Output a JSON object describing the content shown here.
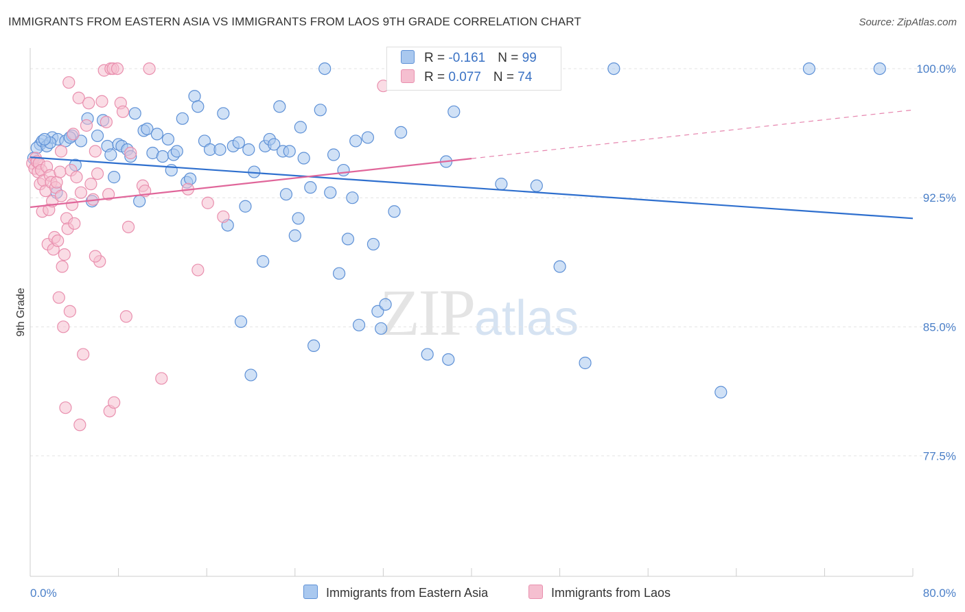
{
  "header": {
    "title": "IMMIGRANTS FROM EASTERN ASIA VS IMMIGRANTS FROM LAOS 9TH GRADE CORRELATION CHART",
    "source": "Source: ZipAtlas.com"
  },
  "watermark": {
    "zip": "ZIP",
    "atlas": "atlas"
  },
  "legend": {
    "rows": [
      {
        "r_label": "R = ",
        "r_value": "-0.161",
        "n_label": "N = ",
        "n_value": "99"
      },
      {
        "r_label": "R = ",
        "r_value": "0.077",
        "n_label": "N = ",
        "n_value": "74"
      }
    ]
  },
  "colors": {
    "blue_fill": "#a9c8ef",
    "blue_stroke": "#5d90d6",
    "blue_line": "#2e6fce",
    "pink_fill": "#f5bfd0",
    "pink_stroke": "#e98fae",
    "pink_line": "#e0669a",
    "grid": "#e3e3e3",
    "axis_label": "#4a7fc8"
  },
  "chart_data": {
    "type": "scatter",
    "title": "IMMIGRANTS FROM EASTERN ASIA VS IMMIGRANTS FROM LAOS 9TH GRADE CORRELATION CHART",
    "xlabel": "",
    "ylabel": "9th Grade",
    "xlim": [
      0,
      80
    ],
    "ylim": [
      70.5,
      101.2
    ],
    "x_tick_labels": [
      "0.0%",
      "80.0%"
    ],
    "y_ticks": [
      77.5,
      85.0,
      92.5,
      100.0
    ],
    "y_tick_labels": [
      "77.5%",
      "85.0%",
      "92.5%",
      "100.0%"
    ],
    "grid": true,
    "legend_placement": "top-center",
    "series": [
      {
        "name": "Immigrants from Eastern Asia",
        "color": "#a9c8ef",
        "trend": {
          "x": [
            0,
            80
          ],
          "y": [
            94.85,
            91.3
          ],
          "dashed_from": null
        },
        "points": [
          [
            0.9,
            95.6
          ],
          [
            0.6,
            95.4
          ],
          [
            1.1,
            95.8
          ],
          [
            1.5,
            95.5
          ],
          [
            2.0,
            96.0
          ],
          [
            2.5,
            95.9
          ],
          [
            1.8,
            95.7
          ],
          [
            3.2,
            95.8
          ],
          [
            3.8,
            96.1
          ],
          [
            4.6,
            95.8
          ],
          [
            5.2,
            97.1
          ],
          [
            6.1,
            96.1
          ],
          [
            7.0,
            95.5
          ],
          [
            7.3,
            95.0
          ],
          [
            8.0,
            95.6
          ],
          [
            8.3,
            95.5
          ],
          [
            8.8,
            95.3
          ],
          [
            9.1,
            94.9
          ],
          [
            9.9,
            92.3
          ],
          [
            10.3,
            96.4
          ],
          [
            10.6,
            96.5
          ],
          [
            11.1,
            95.1
          ],
          [
            11.5,
            96.2
          ],
          [
            12.0,
            94.9
          ],
          [
            12.5,
            95.9
          ],
          [
            13.0,
            95.0
          ],
          [
            13.3,
            95.2
          ],
          [
            13.8,
            97.1
          ],
          [
            14.2,
            93.4
          ],
          [
            14.5,
            93.6
          ],
          [
            14.9,
            98.4
          ],
          [
            15.2,
            97.8
          ],
          [
            15.8,
            95.8
          ],
          [
            16.3,
            95.3
          ],
          [
            17.2,
            95.3
          ],
          [
            17.5,
            97.4
          ],
          [
            17.9,
            90.9
          ],
          [
            18.4,
            95.5
          ],
          [
            18.9,
            95.7
          ],
          [
            19.5,
            92.0
          ],
          [
            19.8,
            95.3
          ],
          [
            20.3,
            94.0
          ],
          [
            21.1,
            88.8
          ],
          [
            21.3,
            95.5
          ],
          [
            21.7,
            95.9
          ],
          [
            22.1,
            95.6
          ],
          [
            22.6,
            97.8
          ],
          [
            22.9,
            95.2
          ],
          [
            23.2,
            92.7
          ],
          [
            23.5,
            95.2
          ],
          [
            24.0,
            90.3
          ],
          [
            24.3,
            91.3
          ],
          [
            24.8,
            94.8
          ],
          [
            25.4,
            93.1
          ],
          [
            25.7,
            83.9
          ],
          [
            26.3,
            97.6
          ],
          [
            26.7,
            100.0
          ],
          [
            27.2,
            92.8
          ],
          [
            27.5,
            95.0
          ],
          [
            28.0,
            88.1
          ],
          [
            28.4,
            94.1
          ],
          [
            28.8,
            90.1
          ],
          [
            29.2,
            92.5
          ],
          [
            29.5,
            95.8
          ],
          [
            29.8,
            85.1
          ],
          [
            30.6,
            96.0
          ],
          [
            31.1,
            89.8
          ],
          [
            31.5,
            85.9
          ],
          [
            31.8,
            84.9
          ],
          [
            32.2,
            86.3
          ],
          [
            33.0,
            91.7
          ],
          [
            36.0,
            83.4
          ],
          [
            37.7,
            94.6
          ],
          [
            37.9,
            83.1
          ],
          [
            38.4,
            97.5
          ],
          [
            41.5,
            100.0
          ],
          [
            42.7,
            93.3
          ],
          [
            45.5,
            100.0
          ],
          [
            45.9,
            93.2
          ],
          [
            48.0,
            88.5
          ],
          [
            50.3,
            82.9
          ],
          [
            52.9,
            100.0
          ],
          [
            62.6,
            81.2
          ],
          [
            70.6,
            100.0
          ],
          [
            77.0,
            100.0
          ],
          [
            0.3,
            94.8
          ],
          [
            1.3,
            95.9
          ],
          [
            2.4,
            92.8
          ],
          [
            3.6,
            96.0
          ],
          [
            4.1,
            94.4
          ],
          [
            5.6,
            92.3
          ],
          [
            6.6,
            97.0
          ],
          [
            7.6,
            93.7
          ],
          [
            9.5,
            97.4
          ],
          [
            12.8,
            94.1
          ],
          [
            19.1,
            85.3
          ],
          [
            20.0,
            82.2
          ],
          [
            24.5,
            96.6
          ],
          [
            33.6,
            96.3
          ]
        ]
      },
      {
        "name": "Immigrants from Laos",
        "color": "#f5bfd0",
        "trend": {
          "x": [
            0,
            80
          ],
          "y": [
            91.95,
            97.6
          ],
          "dashed_from": 40
        },
        "points": [
          [
            0.2,
            94.5
          ],
          [
            0.4,
            94.2
          ],
          [
            0.5,
            94.8
          ],
          [
            0.6,
            94.6
          ],
          [
            0.7,
            94.0
          ],
          [
            0.8,
            94.5
          ],
          [
            1.0,
            94.1
          ],
          [
            0.9,
            93.3
          ],
          [
            1.1,
            91.7
          ],
          [
            1.2,
            93.5
          ],
          [
            1.4,
            92.9
          ],
          [
            1.5,
            94.3
          ],
          [
            1.6,
            89.8
          ],
          [
            1.7,
            91.8
          ],
          [
            1.8,
            93.8
          ],
          [
            1.9,
            93.4
          ],
          [
            2.0,
            92.3
          ],
          [
            2.1,
            89.5
          ],
          [
            2.2,
            90.2
          ],
          [
            2.3,
            93.1
          ],
          [
            2.4,
            93.4
          ],
          [
            2.5,
            90.0
          ],
          [
            2.6,
            86.7
          ],
          [
            2.7,
            94.0
          ],
          [
            2.8,
            92.6
          ],
          [
            2.9,
            88.5
          ],
          [
            3.0,
            85.0
          ],
          [
            3.1,
            89.2
          ],
          [
            3.2,
            80.3
          ],
          [
            3.3,
            91.3
          ],
          [
            3.4,
            90.7
          ],
          [
            3.5,
            99.2
          ],
          [
            3.6,
            85.9
          ],
          [
            3.7,
            94.1
          ],
          [
            3.8,
            92.1
          ],
          [
            3.9,
            96.2
          ],
          [
            4.0,
            91.0
          ],
          [
            4.2,
            93.7
          ],
          [
            4.4,
            98.3
          ],
          [
            4.6,
            92.8
          ],
          [
            4.8,
            83.4
          ],
          [
            5.1,
            96.7
          ],
          [
            5.3,
            98.0
          ],
          [
            5.5,
            93.3
          ],
          [
            5.7,
            92.4
          ],
          [
            5.9,
            95.2
          ],
          [
            6.1,
            93.9
          ],
          [
            6.3,
            88.8
          ],
          [
            6.5,
            98.1
          ],
          [
            6.7,
            99.9
          ],
          [
            6.9,
            96.9
          ],
          [
            7.1,
            92.7
          ],
          [
            7.2,
            80.1
          ],
          [
            7.3,
            100.0
          ],
          [
            7.5,
            100.0
          ],
          [
            7.6,
            80.6
          ],
          [
            7.9,
            100.0
          ],
          [
            8.2,
            98.0
          ],
          [
            8.4,
            97.5
          ],
          [
            8.7,
            85.6
          ],
          [
            8.9,
            90.8
          ],
          [
            9.1,
            95.1
          ],
          [
            10.2,
            93.2
          ],
          [
            10.4,
            92.9
          ],
          [
            10.8,
            100.0
          ],
          [
            11.9,
            82.0
          ],
          [
            14.3,
            93.0
          ],
          [
            15.2,
            88.3
          ],
          [
            16.1,
            92.2
          ],
          [
            17.5,
            91.4
          ],
          [
            32.0,
            99.0
          ],
          [
            5.9,
            89.1
          ],
          [
            4.5,
            79.3
          ],
          [
            2.8,
            95.2
          ]
        ]
      }
    ]
  },
  "bottom_legend": {
    "items": [
      {
        "label": "Immigrants from Eastern Asia"
      },
      {
        "label": "Immigrants from Laos"
      }
    ]
  }
}
